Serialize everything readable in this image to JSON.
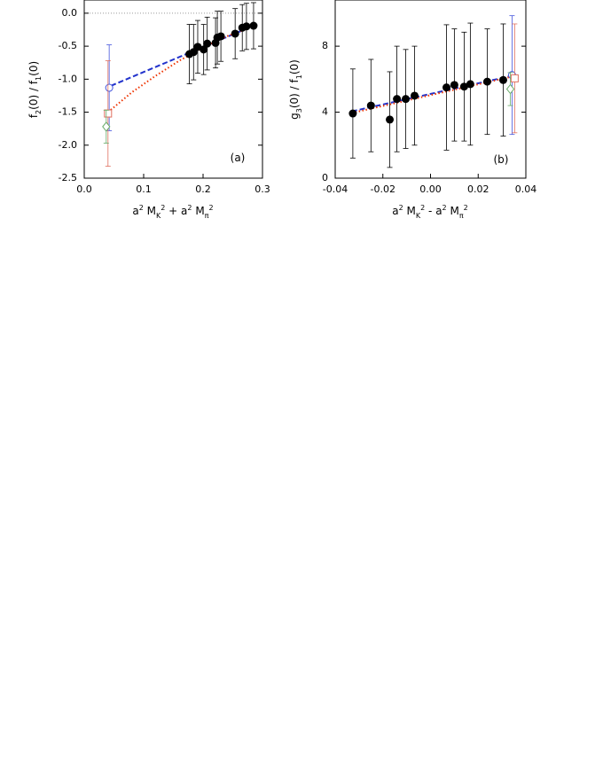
{
  "chart_data": [
    {
      "type": "scatter",
      "xlabel": [
        {
          "text": "a"
        },
        {
          "text": "2",
          "script": "sup"
        },
        {
          "text": " M"
        },
        {
          "text": "K",
          "script": "sub"
        },
        {
          "text": "2",
          "script": "sup"
        },
        {
          "text": " + a"
        },
        {
          "text": "2",
          "script": "sup"
        },
        {
          "text": " M"
        },
        {
          "text": "π",
          "script": "sub"
        },
        {
          "text": "2",
          "script": "sup"
        }
      ],
      "ylabel": [
        {
          "text": "f"
        },
        {
          "text": "2",
          "script": "sub"
        },
        {
          "text": "(0) / f"
        },
        {
          "text": "1",
          "script": "sub"
        },
        {
          "text": "(0)"
        }
      ],
      "annotation": "(a)",
      "xlim": [
        0,
        0.3
      ],
      "xticks": [
        {
          "value": 0,
          "label": "0.0"
        },
        0.1,
        0.2,
        0.3
      ],
      "ylim": [
        -2.5,
        0.2
      ],
      "yticks": [
        {
          "value": -2.5,
          "label": "-2.5"
        },
        {
          "value": -2,
          "label": "-2.0"
        },
        -1.5,
        {
          "value": -1,
          "label": "-1.0"
        },
        -0.5,
        {
          "value": 0,
          "label": "0.0"
        }
      ],
      "hline": 0,
      "series": [
        {
          "marker": "disc",
          "color": "#000000",
          "x": [
            0.177,
            0.184,
            0.191,
            0.201,
            0.207,
            0.221,
            0.224,
            0.23,
            0.254,
            0.266,
            0.273,
            0.285
          ],
          "values": [
            -0.62,
            -0.59,
            -0.51,
            -0.55,
            -0.46,
            -0.45,
            -0.37,
            -0.35,
            -0.31,
            -0.22,
            -0.2,
            -0.19
          ],
          "errors": [
            0.45,
            0.42,
            0.4,
            0.38,
            0.4,
            0.38,
            0.4,
            0.38,
            0.38,
            0.35,
            0.35,
            0.35
          ]
        },
        {
          "marker": "circle",
          "color": "#4455dd",
          "x": [
            0.042
          ],
          "values": [
            -1.13
          ],
          "errors": [
            0.65
          ]
        },
        {
          "marker": "square",
          "color": "#e07060",
          "x": [
            0.04
          ],
          "values": [
            -1.52
          ],
          "errors": [
            0.8
          ]
        },
        {
          "marker": "diamond",
          "color": "#66aa66",
          "x": [
            0.037
          ],
          "values": [
            -1.72
          ],
          "errors": [
            0.25
          ]
        },
        {
          "marker": "line",
          "dash": "dashed",
          "color": "#2233cc",
          "x": [
            0.045,
            0.285
          ],
          "values": [
            -1.1,
            -0.19
          ]
        },
        {
          "marker": "line",
          "dash": "dotted",
          "color": "#ee3300",
          "x": [
            0.04,
            0.08,
            0.12,
            0.16,
            0.2,
            0.24,
            0.285
          ],
          "values": [
            -1.5,
            -1.2,
            -0.95,
            -0.72,
            -0.52,
            -0.35,
            -0.2
          ]
        }
      ]
    },
    {
      "type": "scatter",
      "xlabel": [
        {
          "text": "a"
        },
        {
          "text": "2",
          "script": "sup"
        },
        {
          "text": " M"
        },
        {
          "text": "K",
          "script": "sub"
        },
        {
          "text": "2",
          "script": "sup"
        },
        {
          "text": " - a"
        },
        {
          "text": "2",
          "script": "sup"
        },
        {
          "text": " M"
        },
        {
          "text": "π",
          "script": "sub"
        },
        {
          "text": "2",
          "script": "sup"
        }
      ],
      "ylabel": [
        {
          "text": "g"
        },
        {
          "text": "3",
          "script": "sub"
        },
        {
          "text": "(0) / f"
        },
        {
          "text": "1",
          "script": "sub"
        },
        {
          "text": "(0)"
        }
      ],
      "annotation": "(b)",
      "xlim": [
        -0.04,
        0.04
      ],
      "xticks": [
        -0.04,
        -0.02,
        {
          "value": 0,
          "label": "0.00"
        },
        0.02,
        0.04
      ],
      "ylim": [
        0,
        10.8
      ],
      "yticks": [
        0,
        4,
        8
      ],
      "series": [
        {
          "marker": "disc",
          "color": "#000000",
          "x": [
            -0.0326,
            -0.025,
            -0.0171,
            -0.0141,
            -0.0104,
            -0.0067,
            0.0067,
            0.01,
            0.0141,
            0.0167,
            0.0238,
            0.0305
          ],
          "values": [
            3.92,
            4.4,
            3.55,
            4.8,
            4.8,
            5.0,
            5.5,
            5.65,
            5.55,
            5.7,
            5.85,
            5.95
          ],
          "errors": [
            2.7,
            2.8,
            2.9,
            3.2,
            3.0,
            3.0,
            3.8,
            3.4,
            3.3,
            3.7,
            3.2,
            3.4
          ]
        },
        {
          "marker": "circle",
          "color": "#4455dd",
          "x": [
            0.0342
          ],
          "values": [
            6.25
          ],
          "errors": [
            3.6
          ]
        },
        {
          "marker": "square",
          "color": "#e07060",
          "x": [
            0.0353
          ],
          "values": [
            6.05
          ],
          "errors": [
            3.3
          ]
        },
        {
          "marker": "diamond",
          "color": "#66aa66",
          "x": [
            0.0335
          ],
          "values": [
            5.4
          ],
          "errors": [
            1.0
          ]
        },
        {
          "marker": "line",
          "dash": "dashed",
          "color": "#2233cc",
          "x": [
            -0.033,
            0.034
          ],
          "values": [
            4.05,
            6.2
          ]
        },
        {
          "marker": "line",
          "dash": "dotted",
          "color": "#ee3300",
          "x": [
            -0.033,
            0.034
          ],
          "values": [
            3.95,
            6.15
          ]
        }
      ]
    }
  ]
}
